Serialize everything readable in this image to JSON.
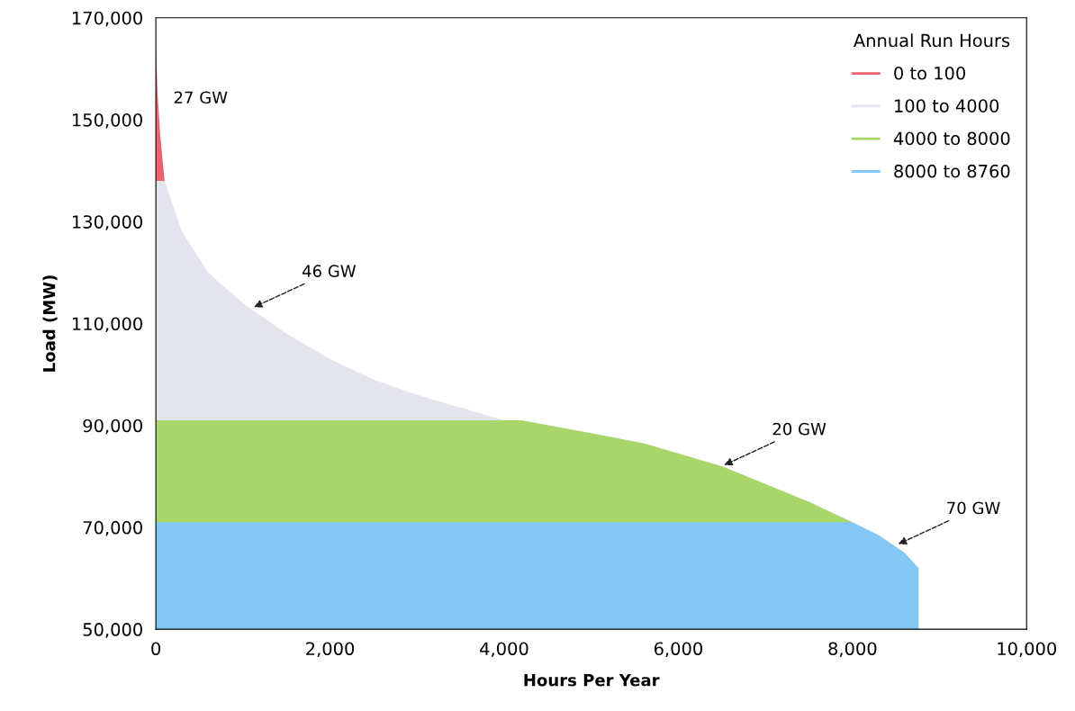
{
  "chart_data": {
    "type": "area",
    "xlabel": "Hours Per Year",
    "ylabel": "Load (MW)",
    "legend_title": "Annual Run Hours",
    "legend": "top right",
    "grid": false,
    "xlim": [
      0,
      10000
    ],
    "xticks": [
      {
        "value": 0,
        "label": "0"
      },
      {
        "value": 2000,
        "label": "2,000"
      },
      {
        "value": 4000,
        "label": "4,000"
      },
      {
        "value": 6000,
        "label": "6,000"
      },
      {
        "value": 8000,
        "label": "8,000"
      },
      {
        "value": 10000,
        "label": "10,000"
      }
    ],
    "ylim": [
      50000,
      170000
    ],
    "yticks": [
      {
        "value": 50000,
        "label": "50,000"
      },
      {
        "value": 70000,
        "label": "70,000"
      },
      {
        "value": 90000,
        "label": "90,000"
      },
      {
        "value": 110000,
        "label": "110,000"
      },
      {
        "value": 130000,
        "label": "130,000"
      },
      {
        "value": 150000,
        "label": "150,000"
      },
      {
        "value": 170000,
        "label": "170,000"
      }
    ],
    "series": [
      {
        "name": "0 to 100",
        "color": "#f0606e",
        "x": [
          0,
          20,
          50,
          100
        ],
        "values": [
          165000,
          155000,
          147000,
          138000
        ]
      },
      {
        "name": "100 to 4000",
        "color": "#e4e4ee",
        "x": [
          0,
          100,
          300,
          600,
          1000,
          1500,
          2000,
          2500,
          3000,
          3500,
          4000
        ],
        "values": [
          138000,
          138000,
          128000,
          120000,
          114000,
          108000,
          103000,
          99000,
          96000,
          93500,
          91000
        ]
      },
      {
        "name": "4000 to 8000",
        "color": "#a9d66b",
        "x": [
          0,
          4200,
          5000,
          5600,
          6000,
          6500,
          7000,
          7500,
          8000
        ],
        "values": [
          91000,
          91000,
          88500,
          86500,
          84500,
          82000,
          78500,
          75000,
          71000
        ]
      },
      {
        "name": "8000 to 8760",
        "color": "#82c8f2",
        "x": [
          0,
          8000,
          8300,
          8600,
          8760
        ],
        "values": [
          71000,
          71000,
          68500,
          65000,
          62000
        ]
      }
    ],
    "annotations": [
      "27 GW",
      {
        "text": "46 GW",
        "x": 1100,
        "y": 113000
      },
      {
        "text": "20 GW",
        "x": 6500,
        "y": 82000
      },
      {
        "text": "70 GW",
        "x": 8500,
        "y": 66500
      }
    ]
  }
}
